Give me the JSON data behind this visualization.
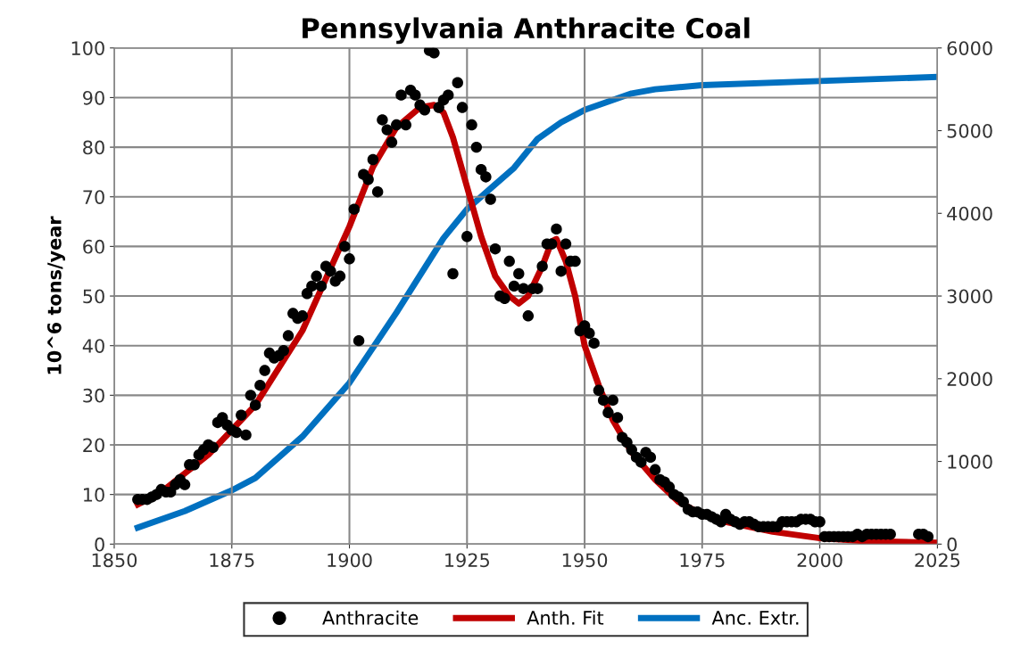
{
  "chart_data": {
    "type": "line",
    "title": "Pennsylvania Anthracite Coal",
    "ylabel": "10^6 tons/year",
    "xlim": [
      1850,
      2025
    ],
    "xticks": [
      1850,
      1875,
      1900,
      1925,
      1950,
      1975,
      2000,
      2025
    ],
    "ylim": [
      0,
      100
    ],
    "yticks": [
      0,
      10,
      20,
      30,
      40,
      50,
      60,
      70,
      80,
      90,
      100
    ],
    "y2lim": [
      0,
      6000
    ],
    "y2ticks": [
      0,
      1000,
      2000,
      3000,
      4000,
      5000,
      6000
    ],
    "grid": true,
    "legend": "bottom",
    "series": [
      {
        "name": "Anthracite",
        "type": "scatter",
        "marker": "circle",
        "color": "#000000",
        "x": [
          1855,
          1856,
          1857,
          1858,
          1859,
          1860,
          1861,
          1862,
          1863,
          1864,
          1865,
          1866,
          1867,
          1868,
          1869,
          1870,
          1871,
          1872,
          1873,
          1874,
          1875,
          1876,
          1877,
          1878,
          1879,
          1880,
          1881,
          1882,
          1883,
          1884,
          1885,
          1886,
          1887,
          1888,
          1889,
          1890,
          1891,
          1892,
          1893,
          1894,
          1895,
          1896,
          1897,
          1898,
          1899,
          1900,
          1901,
          1902,
          1903,
          1904,
          1905,
          1906,
          1907,
          1908,
          1909,
          1910,
          1911,
          1912,
          1913,
          1914,
          1915,
          1916,
          1917,
          1918,
          1919,
          1920,
          1921,
          1922,
          1923,
          1924,
          1925,
          1926,
          1927,
          1928,
          1929,
          1930,
          1931,
          1932,
          1933,
          1934,
          1935,
          1936,
          1937,
          1938,
          1939,
          1940,
          1941,
          1942,
          1943,
          1944,
          1945,
          1946,
          1947,
          1948,
          1949,
          1950,
          1951,
          1952,
          1953,
          1954,
          1955,
          1956,
          1957,
          1958,
          1959,
          1960,
          1961,
          1962,
          1963,
          1964,
          1965,
          1966,
          1967,
          1968,
          1969,
          1970,
          1971,
          1972,
          1973,
          1974,
          1975,
          1976,
          1977,
          1978,
          1979,
          1980,
          1981,
          1982,
          1983,
          1984,
          1985,
          1986,
          1987,
          1988,
          1989,
          1990,
          1991,
          1992,
          1993,
          1994,
          1995,
          1996,
          1997,
          1998,
          1999,
          2000,
          2001,
          2002,
          2003,
          2004,
          2005,
          2006,
          2007,
          2008,
          2009,
          2010,
          2011,
          2012,
          2013,
          2014,
          2015,
          2021,
          2022,
          2023
        ],
        "values": [
          9,
          9,
          9,
          9.5,
          10,
          11,
          10.5,
          10.5,
          12,
          13,
          12,
          16,
          16,
          18,
          19,
          20,
          19.5,
          24.5,
          25.5,
          24,
          23,
          22.5,
          26,
          22,
          30,
          28,
          32,
          35,
          38.5,
          37.5,
          38,
          39,
          42,
          46.5,
          45.5,
          46,
          50.5,
          52,
          54,
          52,
          56,
          55,
          53,
          54,
          60,
          57.5,
          67.5,
          41,
          74.5,
          73.5,
          77.5,
          71,
          85.5,
          83.5,
          81,
          84.5,
          90.5,
          84.5,
          91.5,
          90.5,
          88.5,
          87.5,
          99.5,
          99,
          88,
          89.5,
          90.5,
          54.5,
          93,
          88,
          62,
          84.5,
          80,
          75.5,
          74,
          69.5,
          59.5,
          50,
          49.5,
          57,
          52,
          54.5,
          51.5,
          46,
          51.5,
          51.5,
          56,
          60.5,
          60.5,
          63.5,
          55,
          60.5,
          57,
          57,
          43,
          44,
          42.5,
          40.5,
          31,
          29,
          26.5,
          29,
          25.5,
          21.5,
          20.5,
          19,
          17.5,
          16.5,
          18.5,
          17.5,
          15,
          13,
          12.5,
          11.5,
          10,
          9.5,
          8.5,
          7,
          6.5,
          6.5,
          6,
          6,
          5.5,
          5,
          4.5,
          6,
          5,
          4.5,
          4,
          4.5,
          4.5,
          4,
          3.5,
          3.5,
          3.5,
          3.5,
          3.5,
          4.5,
          4.5,
          4.5,
          4.5,
          5,
          5,
          5,
          4.5,
          4.5,
          1.5,
          1.5,
          1.5,
          1.5,
          1.5,
          1.5,
          1.5,
          2,
          1.5,
          2,
          2,
          2,
          2,
          2,
          2,
          2,
          2,
          1.5
        ]
      },
      {
        "name": "Anth. Fit",
        "color": "#c00000",
        "x": [
          1855,
          1860,
          1870,
          1880,
          1890,
          1900,
          1905,
          1910,
          1915,
          1918,
          1920,
          1922,
          1925,
          1928,
          1931,
          1934,
          1936,
          1938,
          1941,
          1943,
          1944,
          1946,
          1948,
          1950,
          1953,
          1956,
          1960,
          1965,
          1970,
          1975,
          1980,
          1990,
          2000,
          2010,
          2025
        ],
        "values": [
          8,
          10.5,
          18,
          28,
          43,
          64,
          76,
          84,
          88,
          88.5,
          87,
          82,
          72,
          62,
          54,
          50,
          48.5,
          50,
          56,
          61,
          61.5,
          57,
          50,
          40,
          32,
          25,
          18.5,
          13,
          8.5,
          6,
          4.5,
          2.5,
          1.2,
          0.6,
          0.3
        ]
      },
      {
        "name": "Anc. Extr.",
        "axis": "y2",
        "color": "#0070c0",
        "x": [
          1855,
          1865,
          1875,
          1880,
          1890,
          1900,
          1910,
          1920,
          1925,
          1930,
          1935,
          1940,
          1945,
          1950,
          1955,
          1960,
          1965,
          1975,
          2000,
          2025
        ],
        "values": [
          200,
          400,
          650,
          800,
          1300,
          1950,
          2800,
          3700,
          4050,
          4300,
          4550,
          4900,
          5100,
          5250,
          5350,
          5450,
          5500,
          5550,
          5600,
          5650
        ]
      }
    ]
  }
}
